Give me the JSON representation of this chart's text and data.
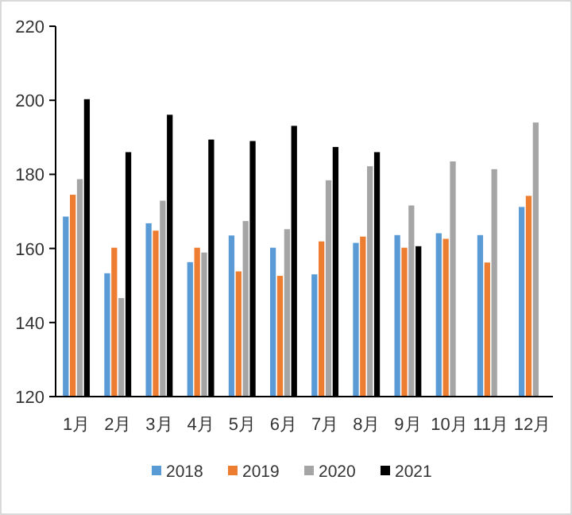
{
  "chart_data": {
    "type": "bar",
    "categories": [
      "1月",
      "2月",
      "3月",
      "4月",
      "5月",
      "6月",
      "7月",
      "8月",
      "9月",
      "10月",
      "11月",
      "12月"
    ],
    "series": [
      {
        "name": "2018",
        "color": "#5b9bd5",
        "values": [
          168.6,
          153.3,
          166.8,
          156.3,
          163.5,
          160.2,
          153.0,
          161.5,
          163.6,
          164.1,
          163.6,
          171.2
        ]
      },
      {
        "name": "2019",
        "color": "#ed7d31",
        "values": [
          174.5,
          160.2,
          164.8,
          160.2,
          153.8,
          152.6,
          161.9,
          163.2,
          160.2,
          162.6,
          156.2,
          174.2
        ]
      },
      {
        "name": "2020",
        "color": "#a5a5a5",
        "values": [
          178.7,
          146.6,
          172.9,
          158.9,
          167.4,
          165.2,
          178.4,
          182.2,
          171.6,
          183.5,
          181.4,
          194.0
        ]
      },
      {
        "name": "2021",
        "color": "#000000",
        "values": [
          200.3,
          186.0,
          196.1,
          189.4,
          189.0,
          193.1,
          187.4,
          186.0,
          160.6,
          null,
          null,
          null
        ]
      }
    ],
    "ylim": [
      120,
      220
    ],
    "yticks": [
      120,
      140,
      160,
      180,
      200,
      220
    ],
    "grid": false,
    "legend": "bottom"
  }
}
